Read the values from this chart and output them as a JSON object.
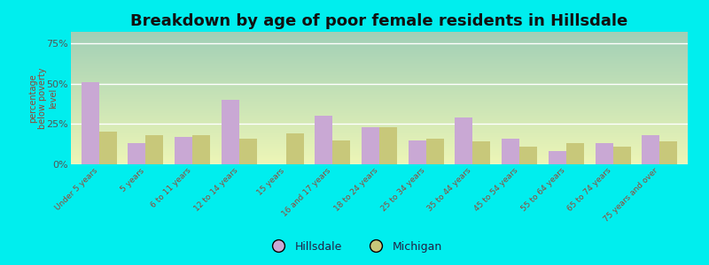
{
  "title": "Breakdown by age of poor female residents in Hillsdale",
  "ylabel": "percentage\nbelow poverty\nlevel",
  "categories": [
    "Under 5 years",
    "5 years",
    "6 to 11 years",
    "12 to 14 years",
    "15 years",
    "16 and 17 years",
    "18 to 24 years",
    "25 to 34 years",
    "35 to 44 years",
    "45 to 54 years",
    "55 to 64 years",
    "65 to 74 years",
    "75 years and over"
  ],
  "hillsdale": [
    51,
    13,
    17,
    40,
    0,
    30,
    23,
    15,
    29,
    16,
    8,
    13,
    18
  ],
  "michigan": [
    20,
    18,
    18,
    16,
    19,
    15,
    23,
    16,
    14,
    11,
    13,
    11,
    14
  ],
  "hillsdale_color": "#c9a8d4",
  "michigan_color": "#c8c87a",
  "plot_bg_color": "#e6f2d8",
  "outer_bg": "#00eeee",
  "yticks": [
    0,
    25,
    50,
    75
  ],
  "ylim": [
    0,
    82
  ],
  "title_fontsize": 13,
  "bar_width": 0.38,
  "tick_label_color": "#994433",
  "ylabel_color": "#994433",
  "ytick_color": "#555555",
  "grid_color": "#ffffff",
  "legend_label_color": "#222244"
}
